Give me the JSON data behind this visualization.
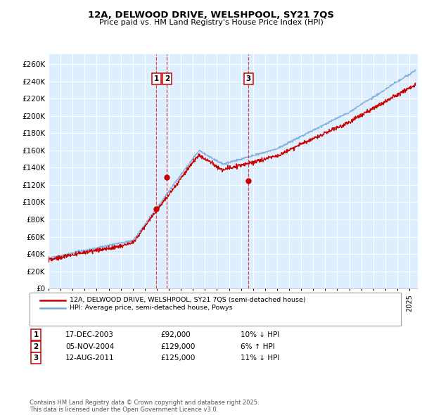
{
  "title": "12A, DELWOOD DRIVE, WELSHPOOL, SY21 7QS",
  "subtitle": "Price paid vs. HM Land Registry's House Price Index (HPI)",
  "legend_line1": "12A, DELWOOD DRIVE, WELSHPOOL, SY21 7QS (semi-detached house)",
  "legend_line2": "HPI: Average price, semi-detached house, Powys",
  "sale_years": [
    2003.96,
    2004.84,
    2011.62
  ],
  "sale_prices": [
    92000,
    129000,
    125000
  ],
  "ylim": [
    0,
    270000
  ],
  "yticks": [
    0,
    20000,
    40000,
    60000,
    80000,
    100000,
    120000,
    140000,
    160000,
    180000,
    200000,
    220000,
    240000,
    260000
  ],
  "xlim": [
    1995,
    2025.5
  ],
  "footer": "Contains HM Land Registry data © Crown copyright and database right 2025.\nThis data is licensed under the Open Government Licence v3.0.",
  "red_color": "#cc0000",
  "blue_color": "#7aaadd",
  "background_color": "#ddeeff",
  "grid_color": "#ffffff",
  "table_rows": [
    [
      "1",
      "17-DEC-2003",
      "£92,000",
      "10% ↓ HPI"
    ],
    [
      "2",
      "05-NOV-2004",
      "£129,000",
      "6% ↑ HPI"
    ],
    [
      "3",
      "12-AUG-2011",
      "£125,000",
      "11% ↓ HPI"
    ]
  ]
}
